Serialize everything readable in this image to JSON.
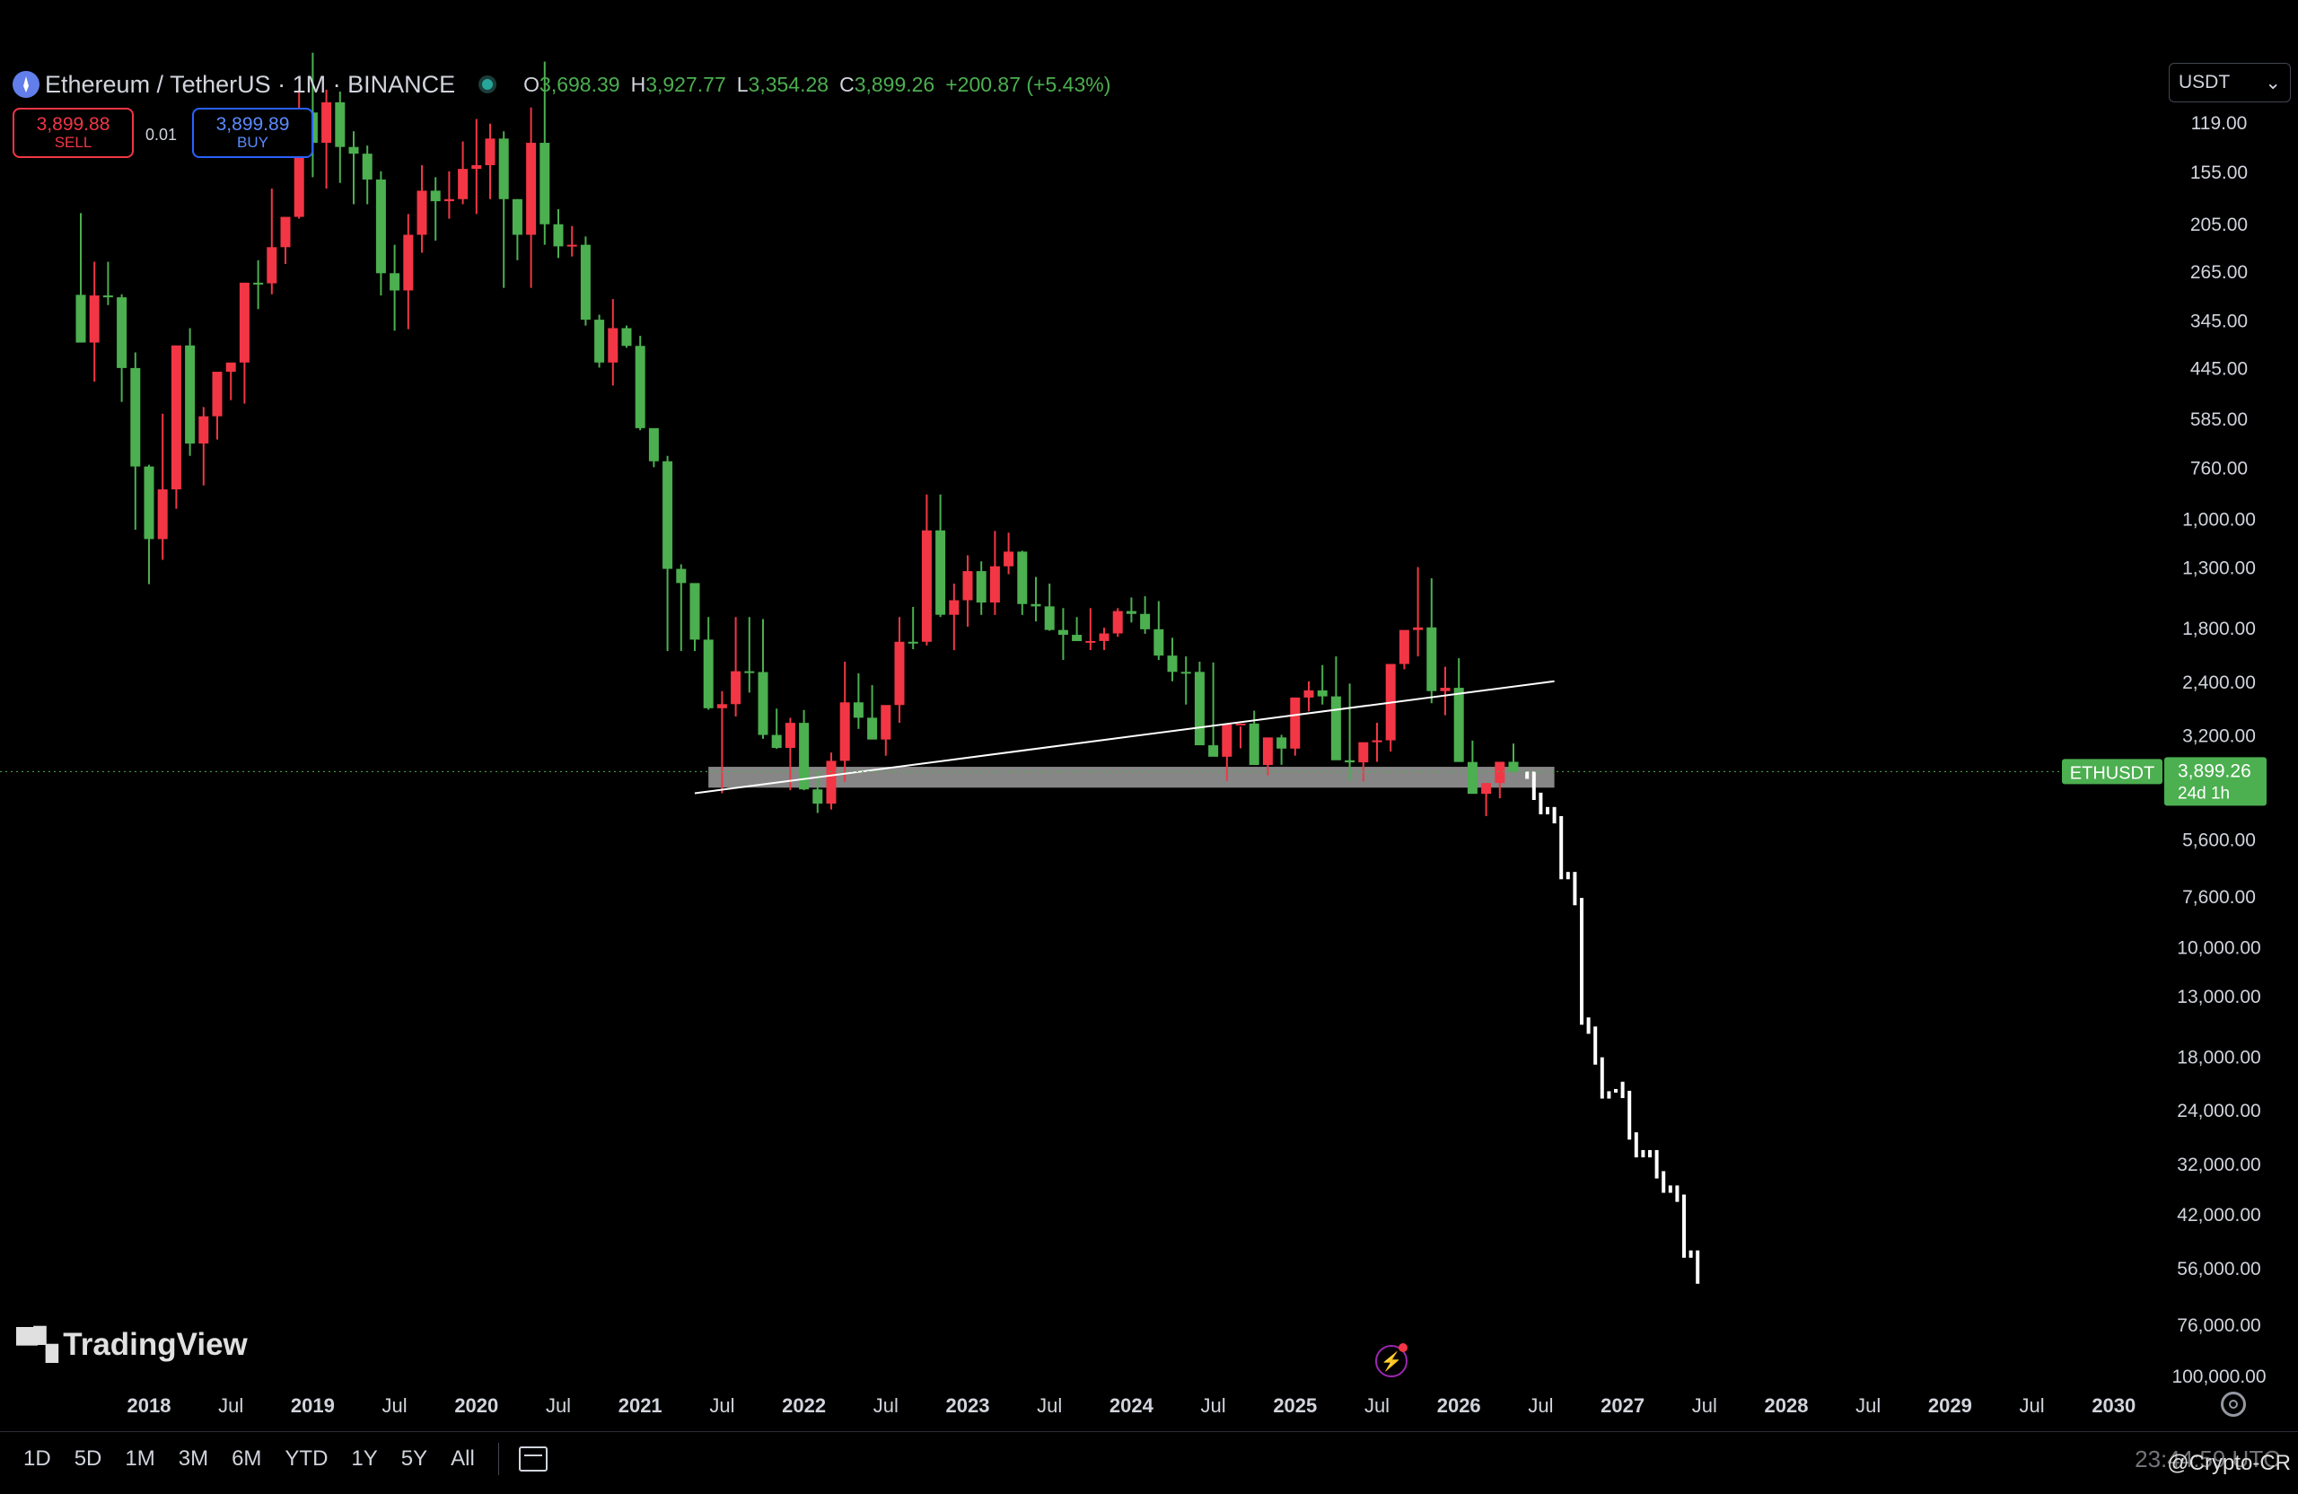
{
  "header": {
    "symbol": "Ethereum / TetherUS · 1M · BINANCE",
    "ohlc": [
      {
        "key": "O",
        "value": "3,698.39"
      },
      {
        "key": "H",
        "value": "3,927.77"
      },
      {
        "key": "L",
        "value": "3,354.28"
      },
      {
        "key": "C",
        "value": "3,899.26"
      }
    ],
    "change": "+200.87 (+5.43%)"
  },
  "trade": {
    "sell_price": "3,899.88",
    "sell_label": "SELL",
    "spread": "0.01",
    "buy_price": "3,899.89",
    "buy_label": "BUY"
  },
  "currency": "USDT",
  "logo": "TradingView",
  "time_ranges": [
    "1D",
    "5D",
    "1M",
    "3M",
    "6M",
    "YTD",
    "1Y",
    "5Y",
    "All"
  ],
  "clock": "23:44:59 UTC",
  "credit": "@Crypto-CR",
  "colors": {
    "up": "#4caf50",
    "down": "#f23645",
    "projection": "#ffffff",
    "zone": "#9e9e9e",
    "background": "#000000"
  },
  "chart_data": {
    "type": "candlestick",
    "title": "Ethereum / TetherUS · 1M · BINANCE",
    "price_scale": "log (inverted)",
    "x_tick_labels": [
      "2018",
      "Jul",
      "2019",
      "Jul",
      "2020",
      "Jul",
      "2021",
      "Jul",
      "2022",
      "Jul",
      "2023",
      "Jul",
      "2024",
      "Jul",
      "2025",
      "Jul",
      "2026",
      "Jul",
      "2027",
      "Jul",
      "2028",
      "Jul",
      "2029",
      "Jul",
      "2030"
    ],
    "y_tick_labels": [
      "119.00",
      "155.00",
      "205.00",
      "265.00",
      "345.00",
      "445.00",
      "585.00",
      "760.00",
      "1,000.00",
      "1,300.00",
      "1,800.00",
      "2,400.00",
      "3,200.00",
      "5,600.00",
      "7,600.00",
      "10,000.00",
      "13,000.00",
      "18,000.00",
      "24,000.00",
      "32,000.00",
      "42,000.00",
      "56,000.00",
      "76,000.00",
      "100,000.00"
    ],
    "y_tick_values": [
      119,
      155,
      205,
      265,
      345,
      445,
      585,
      760,
      1000,
      1300,
      1800,
      2400,
      3200,
      5600,
      7600,
      10000,
      13000,
      18000,
      24000,
      32000,
      42000,
      56000,
      76000,
      100000
    ],
    "time_range": [
      "2017-08",
      "2030-03"
    ],
    "candles_monthly_from_2017_08": [
      [
        301,
        386,
        194,
        389
      ],
      [
        389,
        480,
        252,
        302
      ],
      [
        302,
        318,
        252,
        305
      ],
      [
        305,
        535,
        300,
        446
      ],
      [
        446,
        1063,
        410,
        757
      ],
      [
        757,
        1424,
        750,
        1118
      ],
      [
        1118,
        1250,
        570,
        856
      ],
      [
        856,
        950,
        515,
        395
      ],
      [
        395,
        715,
        360,
        669
      ],
      [
        669,
        838,
        550,
        578
      ],
      [
        578,
        655,
        475,
        455
      ],
      [
        455,
        530,
        440,
        433
      ],
      [
        433,
        540,
        405,
        282
      ],
      [
        282,
        325,
        250,
        283
      ],
      [
        283,
        300,
        170,
        233
      ],
      [
        233,
        255,
        210,
        198
      ],
      [
        198,
        200,
        100,
        113
      ],
      [
        113,
        160,
        82,
        133
      ],
      [
        133,
        170,
        100,
        107
      ],
      [
        107,
        165,
        101,
        136
      ],
      [
        136,
        185,
        125,
        141
      ],
      [
        141,
        185,
        135,
        162
      ],
      [
        162,
        302,
        155,
        268
      ],
      [
        268,
        365,
        230,
        294
      ],
      [
        294,
        362,
        195,
        218
      ],
      [
        218,
        240,
        150,
        172
      ],
      [
        172,
        225,
        160,
        182
      ],
      [
        182,
        200,
        155,
        180
      ],
      [
        180,
        185,
        132,
        153
      ],
      [
        153,
        195,
        117,
        150
      ],
      [
        150,
        180,
        120,
        130
      ],
      [
        130,
        290,
        125,
        180
      ],
      [
        180,
        250,
        180,
        218
      ],
      [
        218,
        290,
        110,
        133
      ],
      [
        133,
        230,
        86,
        206
      ],
      [
        206,
        247,
        190,
        232
      ],
      [
        232,
        245,
        208,
        230
      ],
      [
        230,
        355,
        220,
        344
      ],
      [
        344,
        445,
        335,
        433
      ],
      [
        433,
        490,
        308,
        360
      ],
      [
        360,
        400,
        355,
        396
      ],
      [
        396,
        623,
        375,
        616
      ],
      [
        616,
        760,
        700,
        736
      ],
      [
        736,
        2040,
        715,
        1312
      ],
      [
        1312,
        2040,
        1280,
        1416
      ],
      [
        1416,
        2040,
        1550,
        1919
      ],
      [
        1919,
        2797,
        1700,
        2774
      ],
      [
        2774,
        4380,
        2530,
        2714
      ],
      [
        2714,
        2900,
        1700,
        2274
      ],
      [
        2274,
        2550,
        1700,
        2284
      ],
      [
        2284,
        3270,
        1718,
        3202
      ],
      [
        3202,
        3450,
        2780,
        3433
      ],
      [
        3433,
        4310,
        2920,
        3001
      ],
      [
        3001,
        4310,
        2800,
        4290
      ],
      [
        4290,
        4870,
        3900,
        4631
      ],
      [
        4631,
        4780,
        3520,
        3680
      ],
      [
        3680,
        4120,
        2160,
        2688
      ],
      [
        2688,
        3100,
        2300,
        2919
      ],
      [
        2919,
        3150,
        2450,
        3282
      ],
      [
        3282,
        3580,
        2750,
        2727
      ],
      [
        2727,
        3000,
        1700,
        1941
      ],
      [
        1941,
        2020,
        1610,
        1941
      ],
      [
        1941,
        1980,
        880,
        1067
      ],
      [
        1067,
        1700,
        880,
        1679
      ],
      [
        1679,
        2030,
        1420,
        1553
      ],
      [
        1553,
        1790,
        1220,
        1328
      ],
      [
        1328,
        1680,
        1260,
        1572
      ],
      [
        1572,
        1680,
        1070,
        1294
      ],
      [
        1294,
        1350,
        1080,
        1196
      ],
      [
        1196,
        1680,
        1190,
        1585
      ],
      [
        1585,
        1740,
        1370,
        1605
      ],
      [
        1605,
        1830,
        1420,
        1822
      ],
      [
        1822,
        2140,
        1620,
        1870
      ],
      [
        1870,
        1930,
        1700,
        1934
      ],
      [
        1934,
        2030,
        1620,
        1933
      ],
      [
        1933,
        2030,
        1800,
        1856
      ],
      [
        1856,
        1890,
        1620,
        1646
      ],
      [
        1646,
        1750,
        1530,
        1671
      ],
      [
        1671,
        1860,
        1520,
        1815
      ],
      [
        1815,
        2140,
        1560,
        2091
      ],
      [
        2091,
        2400,
        1900,
        2282
      ],
      [
        2282,
        2720,
        2100,
        2282
      ],
      [
        2282,
        2690,
        2160,
        3385
      ],
      [
        3385,
        3500,
        2170,
        3600
      ],
      [
        3600,
        4100,
        3200,
        3027
      ],
      [
        3027,
        3060,
        3440,
        3012
      ],
      [
        3012,
        3630,
        2810,
        3763
      ],
      [
        3763,
        3980,
        3400,
        3245
      ],
      [
        3245,
        3760,
        3200,
        3446
      ],
      [
        3446,
        3580,
        2910,
        2619
      ],
      [
        2619,
        2820,
        2400,
        2521
      ],
      [
        2521,
        2720,
        2200,
        2603
      ],
      [
        2603,
        2720,
        2100,
        3669
      ],
      [
        3669,
        4100,
        2430,
        3710
      ],
      [
        3710,
        4110,
        3500,
        3330
      ],
      [
        3330,
        3700,
        3000,
        3296
      ],
      [
        3296,
        3500,
        2700,
        2187
      ],
      [
        2187,
        2250,
        1900,
        1822
      ],
      [
        1822,
        2100,
        1300,
        1797
      ],
      [
        1797,
        2700,
        1380,
        2530
      ],
      [
        2530,
        2880,
        2220,
        2486
      ],
      [
        2486,
        2700,
        2120,
        3703
      ],
      [
        3703,
        3941,
        3300,
        4394
      ],
      [
        4394,
        4953,
        4200,
        4146
      ],
      [
        4146,
        4500,
        3800,
        3699
      ],
      [
        3699,
        3927,
        3354,
        3899
      ]
    ],
    "projection_bars_months": 26,
    "trendline": {
      "from": {
        "date": "2021-05",
        "price": 4380
      },
      "to": {
        "date": "2026-08",
        "price": 2400
      }
    },
    "support_zone": {
      "from": "2021-06",
      "to": "2026-08",
      "price_range": [
        3800,
        4250
      ]
    },
    "last_price_label": {
      "symbol": "ETHUSDT",
      "price": "3,899.26",
      "countdown": "24d 1h"
    }
  }
}
